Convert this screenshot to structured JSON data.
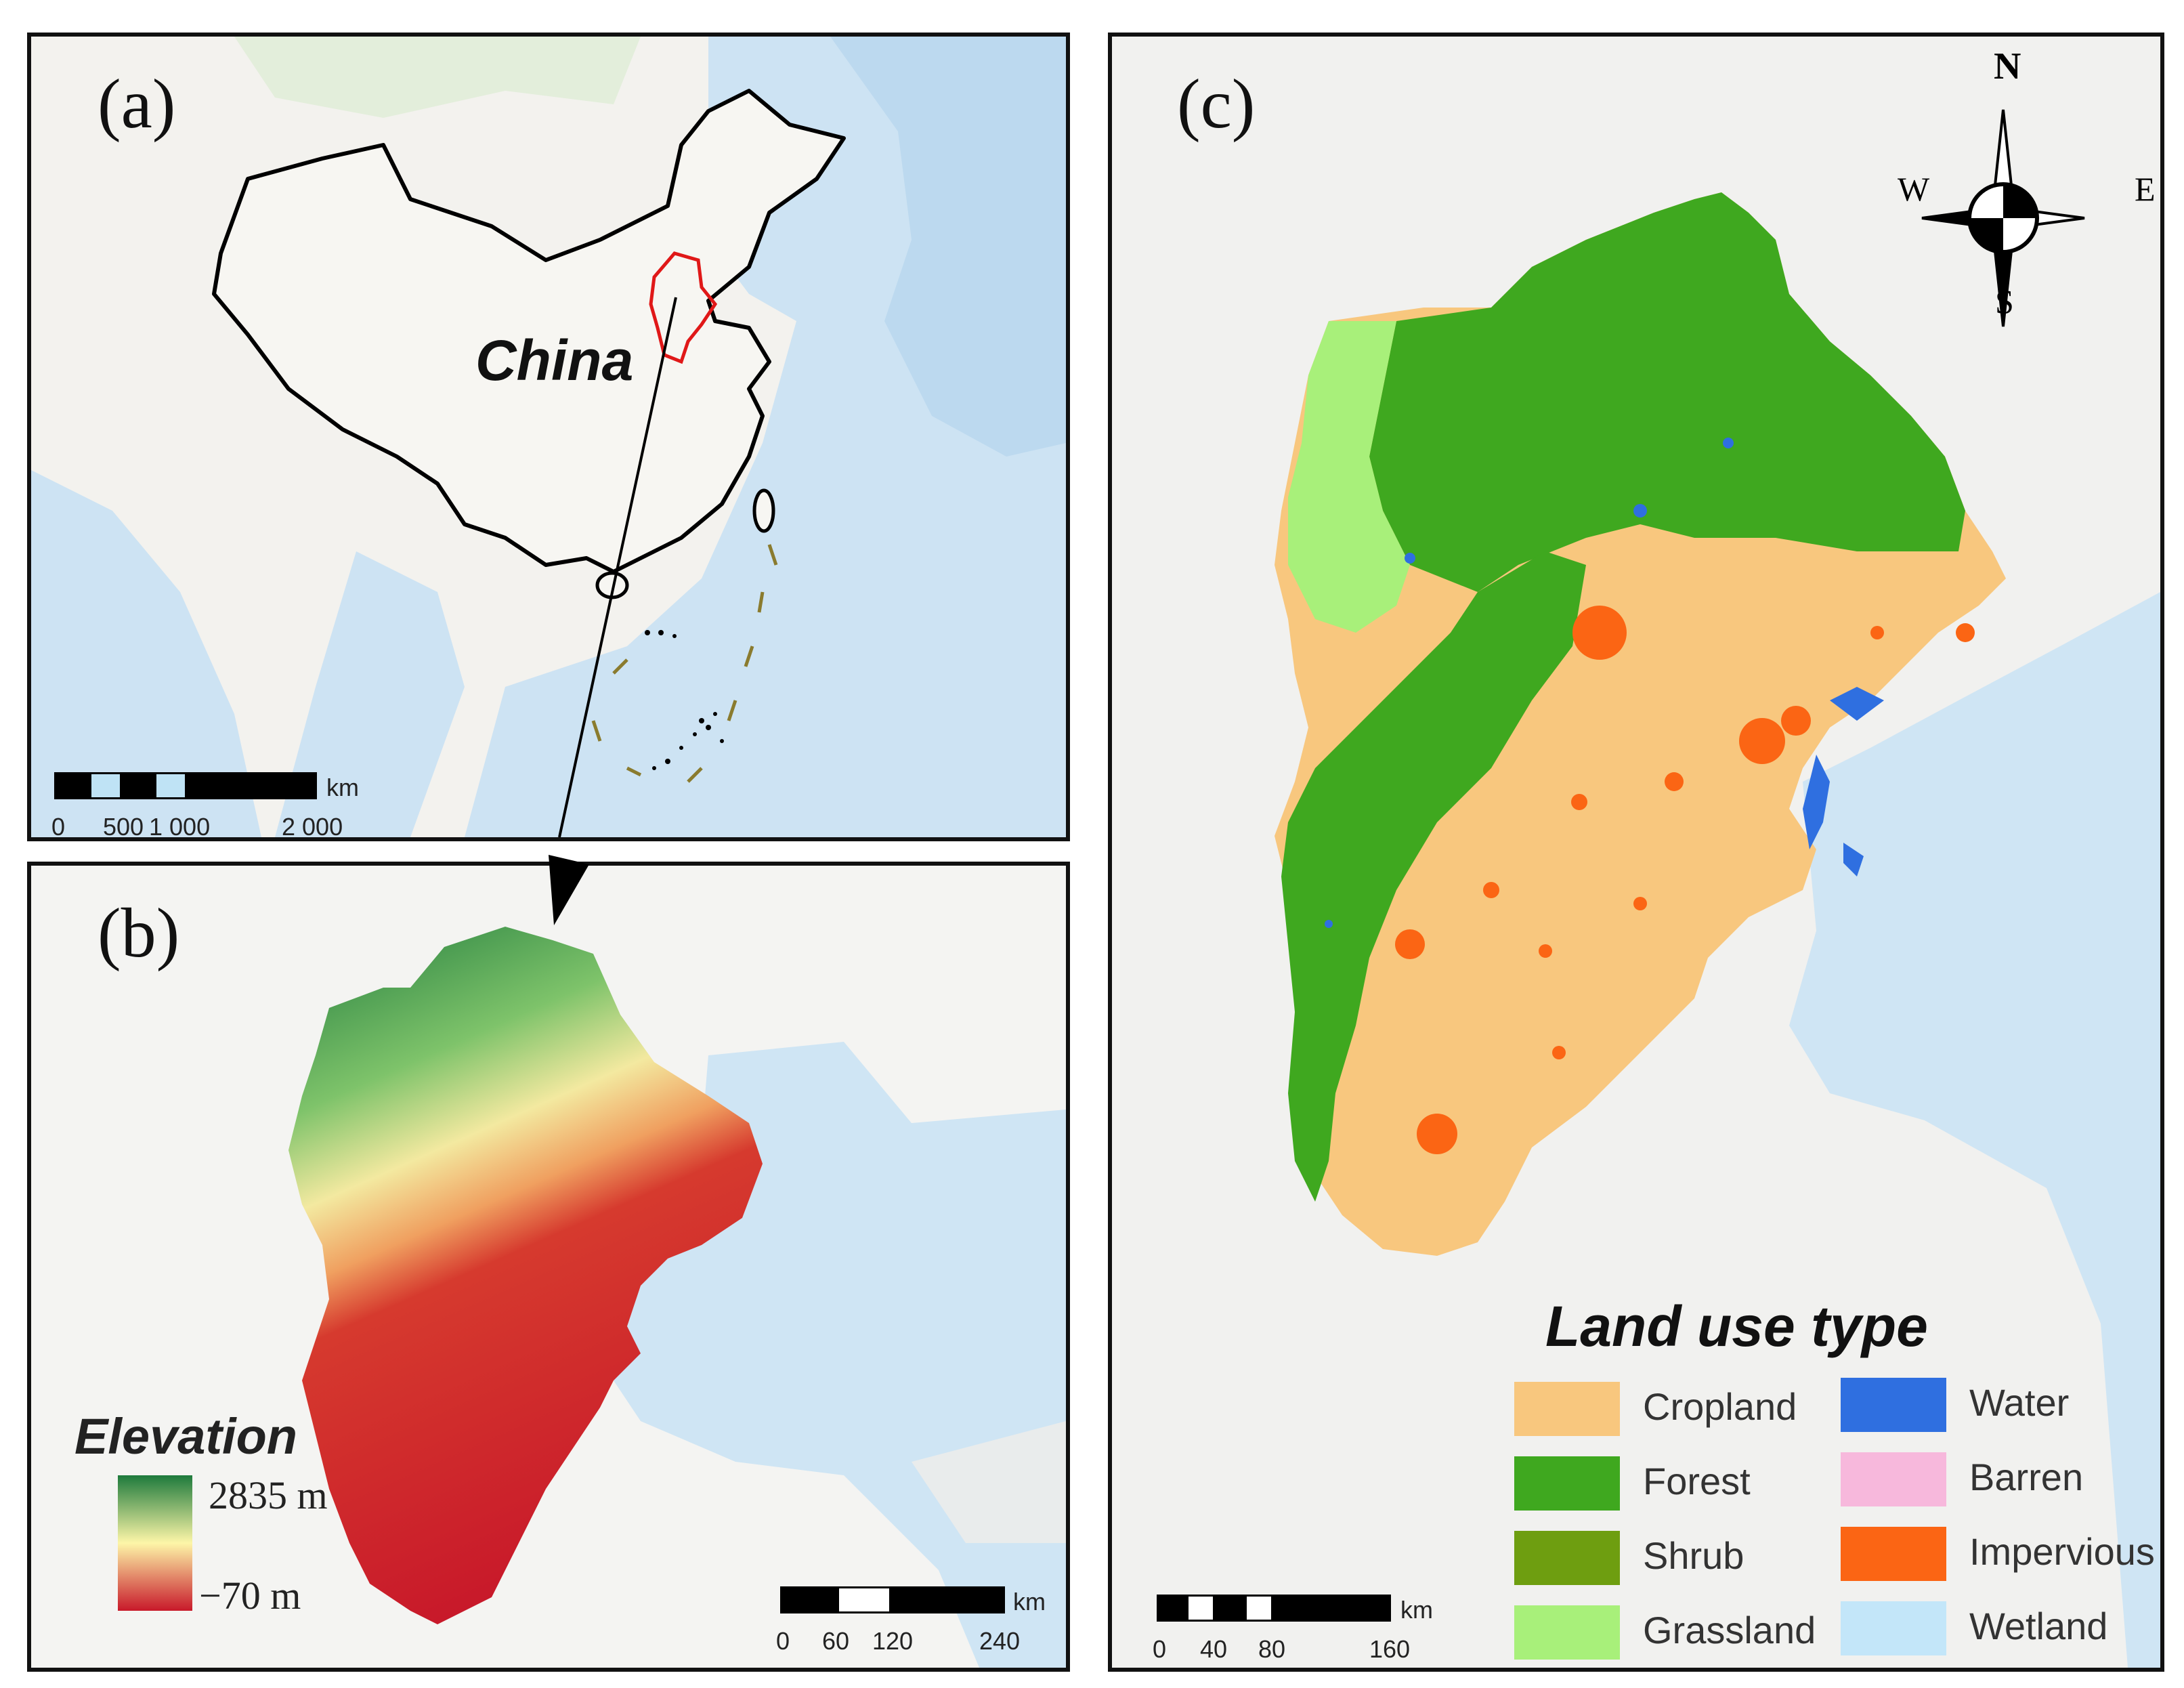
{
  "panels": {
    "a": {
      "label": "(a)",
      "country_label": "China",
      "scale": {
        "unit": "km",
        "ticks": [
          "0",
          "500",
          "1 000",
          "2 000"
        ]
      }
    },
    "b": {
      "label": "(b)",
      "elevation": {
        "title": "Elevation",
        "max": "2835 m",
        "min": "−70 m",
        "colors": [
          "#1e7a3c",
          "#fdf6a8",
          "#c8192a"
        ]
      },
      "scale": {
        "unit": "km",
        "ticks": [
          "0",
          "60",
          "120",
          "240"
        ]
      }
    },
    "c": {
      "label": "(c)",
      "compass": {
        "n": "N",
        "s": "S",
        "e": "E",
        "w": "W"
      },
      "legend": {
        "title": "Land use type",
        "items": [
          {
            "label": "Cropland",
            "color": "#f8c77e"
          },
          {
            "label": "Forest",
            "color": "#3fa81f"
          },
          {
            "label": "Shrub",
            "color": "#6e9e10"
          },
          {
            "label": "Grassland",
            "color": "#a8f07a"
          },
          {
            "label": "Water",
            "color": "#2f6fe0"
          },
          {
            "label": "Barren",
            "color": "#f7b8dc"
          },
          {
            "label": "Impervious",
            "color": "#fb6514"
          },
          {
            "label": "Wetland",
            "color": "#c3e6f9"
          }
        ]
      },
      "scale": {
        "unit": "km",
        "ticks": [
          "0",
          "40",
          "80",
          "160"
        ]
      }
    }
  }
}
